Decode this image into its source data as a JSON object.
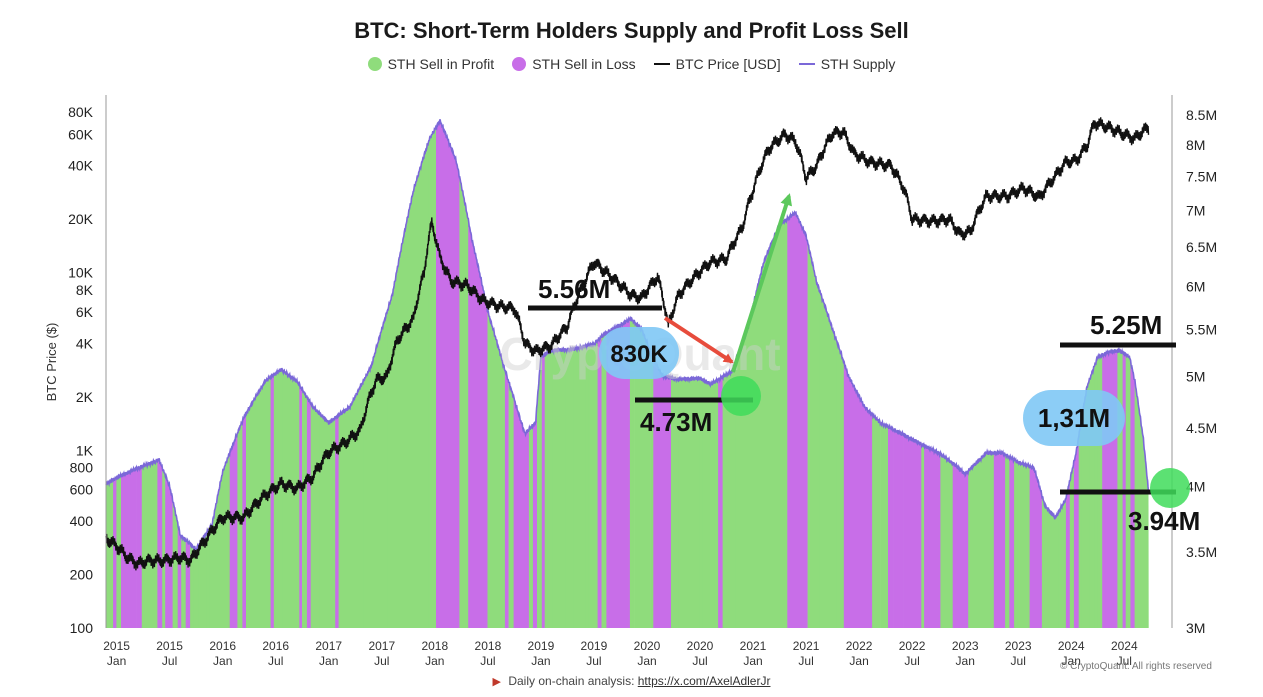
{
  "chart_data": {
    "type": "line",
    "title": "BTC: Short-Term Holders Supply and Profit Loss Sell",
    "legend": [
      {
        "label": "STH Sell in Profit",
        "color": "#8fdc7c",
        "kind": "dot"
      },
      {
        "label": "STH Sell in Loss",
        "color": "#c86ee8",
        "kind": "dot"
      },
      {
        "label": "BTC Price [USD]",
        "color": "#111111",
        "kind": "line"
      },
      {
        "label": "STH Supply",
        "color": "#7b68d8",
        "kind": "line"
      }
    ],
    "ylabel_left": "BTC Price ($)",
    "ylim_left": [
      100,
      100000
    ],
    "yticks_left": [
      {
        "v": 80000,
        "label": "80K"
      },
      {
        "v": 60000,
        "label": "60K"
      },
      {
        "v": 40000,
        "label": "40K"
      },
      {
        "v": 20000,
        "label": "20K"
      },
      {
        "v": 10000,
        "label": "10K"
      },
      {
        "v": 8000,
        "label": "8K"
      },
      {
        "v": 6000,
        "label": "6K"
      },
      {
        "v": 4000,
        "label": "4K"
      },
      {
        "v": 2000,
        "label": "2K"
      },
      {
        "v": 1000,
        "label": "1K"
      },
      {
        "v": 800,
        "label": "800"
      },
      {
        "v": 600,
        "label": "600"
      },
      {
        "v": 400,
        "label": "400"
      },
      {
        "v": 200,
        "label": "200"
      },
      {
        "v": 100,
        "label": "100"
      }
    ],
    "ylim_right": [
      3.0,
      8.85
    ],
    "yticks_right": [
      {
        "v": 8.5,
        "label": "8.5M"
      },
      {
        "v": 8.0,
        "label": "8M"
      },
      {
        "v": 7.5,
        "label": "7.5M"
      },
      {
        "v": 7.0,
        "label": "7M"
      },
      {
        "v": 6.5,
        "label": "6.5M"
      },
      {
        "v": 6.0,
        "label": "6M"
      },
      {
        "v": 5.5,
        "label": "5.5M"
      },
      {
        "v": 5.0,
        "label": "5M"
      },
      {
        "v": 4.5,
        "label": "4.5M"
      },
      {
        "v": 4.0,
        "label": "4M"
      },
      {
        "v": 3.5,
        "label": "3.5M"
      },
      {
        "v": 3.0,
        "label": "3M"
      }
    ],
    "xlim": [
      2014.9,
      2024.95
    ],
    "xticks": [
      {
        "t": 2015.0,
        "y": "2015",
        "m": "Jan"
      },
      {
        "t": 2015.5,
        "y": "2015",
        "m": "Jul"
      },
      {
        "t": 2016.0,
        "y": "2016",
        "m": "Jan"
      },
      {
        "t": 2016.5,
        "y": "2016",
        "m": "Jul"
      },
      {
        "t": 2017.0,
        "y": "2017",
        "m": "Jan"
      },
      {
        "t": 2017.5,
        "y": "2017",
        "m": "Jul"
      },
      {
        "t": 2018.0,
        "y": "2018",
        "m": "Jan"
      },
      {
        "t": 2018.5,
        "y": "2018",
        "m": "Jul"
      },
      {
        "t": 2019.0,
        "y": "2019",
        "m": "Jan"
      },
      {
        "t": 2019.5,
        "y": "2019",
        "m": "Jul"
      },
      {
        "t": 2020.0,
        "y": "2020",
        "m": "Jan"
      },
      {
        "t": 2020.5,
        "y": "2020",
        "m": "Jul"
      },
      {
        "t": 2021.0,
        "y": "2021",
        "m": "Jan"
      },
      {
        "t": 2021.5,
        "y": "2021",
        "m": "Jul"
      },
      {
        "t": 2022.0,
        "y": "2022",
        "m": "Jan"
      },
      {
        "t": 2022.5,
        "y": "2022",
        "m": "Jul"
      },
      {
        "t": 2023.0,
        "y": "2023",
        "m": "Jan"
      },
      {
        "t": 2023.5,
        "y": "2023",
        "m": "Jul"
      },
      {
        "t": 2024.0,
        "y": "2024",
        "m": "Jan"
      },
      {
        "t": 2024.5,
        "y": "2024",
        "m": "Jul"
      }
    ],
    "series": [
      {
        "name": "STH Supply",
        "unit": "M BTC",
        "points": [
          [
            2014.9,
            4.02
          ],
          [
            2015.0,
            4.07
          ],
          [
            2015.2,
            4.15
          ],
          [
            2015.4,
            4.22
          ],
          [
            2015.5,
            4.0
          ],
          [
            2015.6,
            3.62
          ],
          [
            2015.75,
            3.52
          ],
          [
            2015.9,
            3.7
          ],
          [
            2016.0,
            4.12
          ],
          [
            2016.2,
            4.6
          ],
          [
            2016.4,
            4.95
          ],
          [
            2016.55,
            5.07
          ],
          [
            2016.7,
            4.95
          ],
          [
            2016.85,
            4.7
          ],
          [
            2017.0,
            4.55
          ],
          [
            2017.2,
            4.7
          ],
          [
            2017.4,
            5.1
          ],
          [
            2017.6,
            5.9
          ],
          [
            2017.8,
            7.3
          ],
          [
            2017.95,
            8.1
          ],
          [
            2018.05,
            8.4
          ],
          [
            2018.2,
            7.75
          ],
          [
            2018.35,
            6.6
          ],
          [
            2018.5,
            5.7
          ],
          [
            2018.65,
            5.1
          ],
          [
            2018.8,
            4.6
          ],
          [
            2018.85,
            4.45
          ],
          [
            2018.95,
            4.55
          ],
          [
            2019.0,
            5.2
          ],
          [
            2019.1,
            5.27
          ],
          [
            2019.3,
            5.28
          ],
          [
            2019.5,
            5.34
          ],
          [
            2019.6,
            5.45
          ],
          [
            2019.75,
            5.55
          ],
          [
            2019.85,
            5.62
          ],
          [
            2019.95,
            5.5
          ],
          [
            2020.05,
            5.2
          ],
          [
            2020.15,
            5.0
          ],
          [
            2020.3,
            4.97
          ],
          [
            2020.5,
            4.98
          ],
          [
            2020.6,
            4.92
          ],
          [
            2020.8,
            5.05
          ],
          [
            2020.95,
            5.5
          ],
          [
            2021.1,
            6.3
          ],
          [
            2021.25,
            6.8
          ],
          [
            2021.4,
            6.97
          ],
          [
            2021.5,
            6.65
          ],
          [
            2021.6,
            6.05
          ],
          [
            2021.75,
            5.5
          ],
          [
            2021.9,
            5.0
          ],
          [
            2022.05,
            4.7
          ],
          [
            2022.2,
            4.55
          ],
          [
            2022.4,
            4.45
          ],
          [
            2022.6,
            4.35
          ],
          [
            2022.75,
            4.28
          ],
          [
            2022.9,
            4.18
          ],
          [
            2023.0,
            4.1
          ],
          [
            2023.2,
            4.28
          ],
          [
            2023.35,
            4.28
          ],
          [
            2023.5,
            4.2
          ],
          [
            2023.65,
            4.15
          ],
          [
            2023.75,
            3.85
          ],
          [
            2023.85,
            3.75
          ],
          [
            2023.95,
            3.9
          ],
          [
            2024.05,
            4.3
          ],
          [
            2024.15,
            4.9
          ],
          [
            2024.25,
            5.2
          ],
          [
            2024.35,
            5.25
          ],
          [
            2024.45,
            5.27
          ],
          [
            2024.55,
            5.2
          ],
          [
            2024.6,
            4.95
          ],
          [
            2024.68,
            4.4
          ],
          [
            2024.73,
            3.94
          ]
        ]
      },
      {
        "name": "BTC Price [USD]",
        "unit": "USD",
        "points": [
          [
            2014.9,
            320
          ],
          [
            2015.0,
            290
          ],
          [
            2015.1,
            250
          ],
          [
            2015.2,
            230
          ],
          [
            2015.3,
            240
          ],
          [
            2015.45,
            240
          ],
          [
            2015.6,
            250
          ],
          [
            2015.7,
            240
          ],
          [
            2015.85,
            320
          ],
          [
            2016.0,
            420
          ],
          [
            2016.2,
            420
          ],
          [
            2016.4,
            560
          ],
          [
            2016.55,
            650
          ],
          [
            2016.7,
            610
          ],
          [
            2016.85,
            710
          ],
          [
            2017.0,
            980
          ],
          [
            2017.15,
            1100
          ],
          [
            2017.3,
            1300
          ],
          [
            2017.45,
            2500
          ],
          [
            2017.55,
            2600
          ],
          [
            2017.65,
            4200
          ],
          [
            2017.8,
            5500
          ],
          [
            2017.9,
            10000
          ],
          [
            2017.97,
            19000
          ],
          [
            2018.05,
            12000
          ],
          [
            2018.15,
            9000
          ],
          [
            2018.3,
            8500
          ],
          [
            2018.45,
            7000
          ],
          [
            2018.6,
            6500
          ],
          [
            2018.75,
            6300
          ],
          [
            2018.85,
            4000
          ],
          [
            2018.95,
            3600
          ],
          [
            2019.1,
            3900
          ],
          [
            2019.25,
            5000
          ],
          [
            2019.4,
            8500
          ],
          [
            2019.5,
            11500
          ],
          [
            2019.6,
            10200
          ],
          [
            2019.75,
            8500
          ],
          [
            2019.85,
            7500
          ],
          [
            2019.95,
            7200
          ],
          [
            2020.1,
            9500
          ],
          [
            2020.2,
            5000
          ],
          [
            2020.3,
            7500
          ],
          [
            2020.45,
            9500
          ],
          [
            2020.6,
            11500
          ],
          [
            2020.75,
            12000
          ],
          [
            2020.9,
            18000
          ],
          [
            2021.0,
            29000
          ],
          [
            2021.15,
            50000
          ],
          [
            2021.3,
            60000
          ],
          [
            2021.4,
            55000
          ],
          [
            2021.5,
            34000
          ],
          [
            2021.6,
            40000
          ],
          [
            2021.75,
            61000
          ],
          [
            2021.85,
            62000
          ],
          [
            2021.95,
            47000
          ],
          [
            2022.1,
            42000
          ],
          [
            2022.3,
            40000
          ],
          [
            2022.42,
            30000
          ],
          [
            2022.5,
            20000
          ],
          [
            2022.7,
            19500
          ],
          [
            2022.85,
            20000
          ],
          [
            2022.95,
            16500
          ],
          [
            2023.05,
            17000
          ],
          [
            2023.2,
            27000
          ],
          [
            2023.4,
            27000
          ],
          [
            2023.55,
            30000
          ],
          [
            2023.7,
            26500
          ],
          [
            2023.85,
            35000
          ],
          [
            2023.95,
            42000
          ],
          [
            2024.05,
            43000
          ],
          [
            2024.15,
            52000
          ],
          [
            2024.22,
            70000
          ],
          [
            2024.35,
            66000
          ],
          [
            2024.5,
            60000
          ],
          [
            2024.6,
            57000
          ],
          [
            2024.68,
            63000
          ],
          [
            2024.73,
            66000
          ]
        ]
      }
    ],
    "annotations": [
      {
        "label": "5.56M",
        "kind": "level"
      },
      {
        "label": "830K",
        "kind": "bubble"
      },
      {
        "label": "4.73M",
        "kind": "level"
      },
      {
        "label": "5.25M",
        "kind": "level"
      },
      {
        "label": "1,31M",
        "kind": "bubble"
      },
      {
        "label": "3.94M",
        "kind": "level"
      }
    ]
  },
  "footer": {
    "text": "Daily on-chain analysis:",
    "link": "https://x.com/AxelAdlerJr"
  },
  "copyright": "© CryptoQuant. All rights reserved",
  "watermark": "CryptoQuant"
}
